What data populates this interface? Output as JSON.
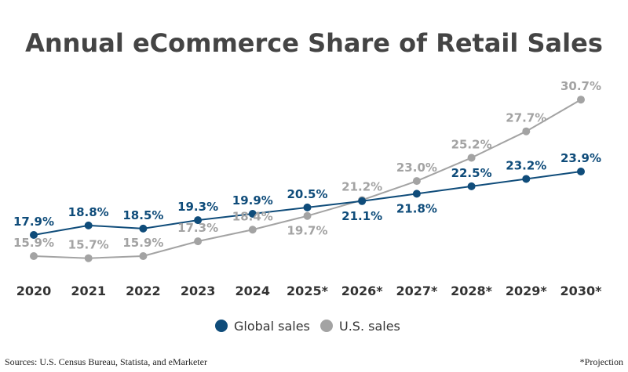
{
  "chart_data": {
    "type": "line",
    "title": "Annual eCommerce Share of Retail Sales",
    "categories": [
      "2020",
      "2021",
      "2022",
      "2023",
      "2024",
      "2025*",
      "2026*",
      "2027*",
      "2028*",
      "2029*",
      "2030*"
    ],
    "series": [
      {
        "name": "Global sales",
        "color": "#0f4c7a",
        "values": [
          17.9,
          18.8,
          18.5,
          19.3,
          19.9,
          20.5,
          21.1,
          21.8,
          22.5,
          23.2,
          23.9
        ],
        "labels": [
          "17.9%",
          "18.8%",
          "18.5%",
          "19.3%",
          "19.9%",
          "20.5%",
          "21.1%",
          "21.8%",
          "22.5%",
          "23.2%",
          "23.9%"
        ]
      },
      {
        "name": "U.S. sales",
        "color": "#a3a3a3",
        "values": [
          15.9,
          15.7,
          15.9,
          17.3,
          18.4,
          19.7,
          21.2,
          23.0,
          25.2,
          27.7,
          30.7
        ],
        "labels": [
          "15.9%",
          "15.7%",
          "15.9%",
          "17.3%",
          "18.4%",
          "19.7%",
          "21.2%",
          "23.0%",
          "25.2%",
          "27.7%",
          "30.7%"
        ]
      }
    ],
    "legend_position": "bottom",
    "grid": false,
    "unit": "%"
  },
  "footer": {
    "source": "Sources: U.S. Census Bureau, Statista, and eMarketer",
    "note": "*Projection"
  }
}
